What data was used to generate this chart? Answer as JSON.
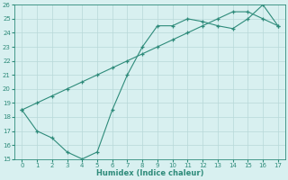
{
  "xlabel": "Humidex (Indice chaleur)",
  "x": [
    0,
    1,
    2,
    3,
    4,
    5,
    6,
    7,
    8,
    9,
    10,
    11,
    12,
    13,
    14,
    15,
    16,
    17
  ],
  "line1_y": [
    18.5,
    17.0,
    16.5,
    15.5,
    15.0,
    15.5,
    18.5,
    21.0,
    23.0,
    24.5,
    24.5,
    25.0,
    24.8,
    24.5,
    24.3,
    25.0,
    26.0,
    24.5
  ],
  "line2_y": [
    18.5,
    19.0,
    19.5,
    20.0,
    20.5,
    21.0,
    21.5,
    22.0,
    22.5,
    23.0,
    23.5,
    24.0,
    24.5,
    25.0,
    25.5,
    25.5,
    25.0,
    24.5
  ],
  "line_color": "#2e8b7a",
  "bg_color": "#d8f0f0",
  "grid_color": "#b8d8d8",
  "ylim": [
    15,
    26
  ],
  "xlim": [
    -0.5,
    17.5
  ],
  "yticks": [
    15,
    16,
    17,
    18,
    19,
    20,
    21,
    22,
    23,
    24,
    25,
    26
  ],
  "xticks": [
    0,
    1,
    2,
    3,
    4,
    5,
    6,
    7,
    8,
    9,
    10,
    11,
    12,
    13,
    14,
    15,
    16,
    17
  ]
}
